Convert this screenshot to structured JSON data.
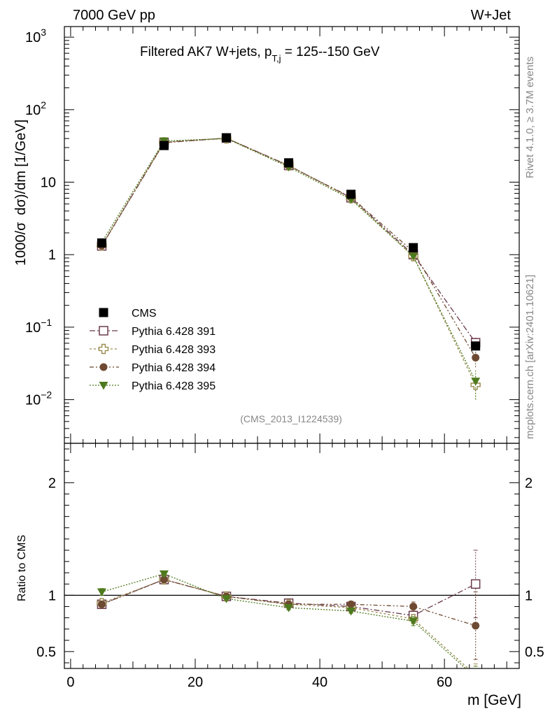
{
  "header": {
    "left": "7000 GeV pp",
    "right": "W+Jet"
  },
  "side_labels": {
    "rivet": "Rivet 4.1.0, ≥ 3.7M events",
    "site": "mcplots.cern.ch [arXiv:2401.10621]"
  },
  "chart_data": {
    "type": "scatter",
    "title_parts": {
      "main": "Filtered AK7 W+jets, p",
      "sub": "T,j",
      "tail": " = 125--150 GeV"
    },
    "analysis_id": "(CMS_2013_I1224539)",
    "xlabel": "m [GeV]",
    "ylabel_parts": {
      "a": "1000/σ",
      "b": "dσ)/dm [1/GeV]"
    },
    "ratio_ylabel": "Ratio to CMS",
    "xlim": [
      -1,
      72
    ],
    "xticks": [
      "0",
      "20",
      "40",
      "60"
    ],
    "ylim_main": [
      0.0025,
      1400
    ],
    "ylim_ratio": [
      0.35,
      2.35
    ],
    "main_tick_labels": [
      "1",
      "10"
    ],
    "main_tick_exp": {
      "base": "10",
      "exps": [
        "3",
        "2",
        "−1",
        "−2"
      ]
    },
    "ratio_tick_labels": [
      "0.5",
      "1",
      "2"
    ],
    "x": [
      5,
      15,
      25,
      35,
      45,
      55,
      65
    ],
    "reference": {
      "name": "CMS",
      "color": "#000000",
      "values": [
        1.45,
        32,
        41,
        18.5,
        6.8,
        1.25,
        0.055
      ],
      "errors": [
        0.08,
        1.2,
        1.2,
        0.7,
        0.3,
        0.06,
        0.006
      ]
    },
    "series": [
      {
        "name": "Pythia 6.428 391",
        "color": "#6b3a4e",
        "marker": "open-square",
        "values": [
          1.32,
          35,
          40.5,
          17,
          6.1,
          1.0,
          0.061
        ],
        "errors": [
          0.05,
          0.5,
          0.5,
          0.3,
          0.15,
          0.05,
          0.013
        ],
        "ratio": [
          0.92,
          1.14,
          0.99,
          0.93,
          0.9,
          0.82,
          1.1
        ],
        "ratio_err": [
          0.02,
          0.02,
          0.01,
          0.02,
          0.02,
          0.04,
          0.3
        ]
      },
      {
        "name": "Pythia 6.428 393",
        "color": "#9a8a4f",
        "marker": "open-cross",
        "values": [
          1.34,
          35.5,
          40,
          17,
          6.0,
          0.95,
          0.016
        ],
        "errors": [
          0.05,
          0.5,
          0.5,
          0.3,
          0.15,
          0.05,
          0.006
        ],
        "ratio": [
          0.93,
          1.14,
          0.99,
          0.92,
          0.89,
          0.79,
          0.29
        ],
        "ratio_err": [
          0.02,
          0.02,
          0.01,
          0.02,
          0.02,
          0.04,
          0.1
        ]
      },
      {
        "name": "Pythia 6.428 394",
        "color": "#6e4a32",
        "marker": "filled-circle",
        "values": [
          1.33,
          35.5,
          40.5,
          16.8,
          6.2,
          1.1,
          0.038
        ],
        "errors": [
          0.05,
          0.5,
          0.5,
          0.3,
          0.15,
          0.05,
          0.01
        ],
        "ratio": [
          0.92,
          1.14,
          0.99,
          0.92,
          0.92,
          0.9,
          0.73
        ],
        "ratio_err": [
          0.02,
          0.02,
          0.01,
          0.02,
          0.02,
          0.04,
          0.3
        ]
      },
      {
        "name": "Pythia 6.428 395",
        "color": "#4e7a1e",
        "marker": "filled-triangle-down",
        "values": [
          1.48,
          37,
          40,
          16.2,
          5.8,
          0.95,
          0.018
        ],
        "errors": [
          0.05,
          0.5,
          0.5,
          0.3,
          0.15,
          0.05,
          0.008
        ],
        "ratio": [
          1.03,
          1.19,
          0.97,
          0.89,
          0.86,
          0.77,
          0.27
        ],
        "ratio_err": [
          0.03,
          0.02,
          0.01,
          0.02,
          0.02,
          0.04,
          0.1
        ]
      }
    ]
  }
}
